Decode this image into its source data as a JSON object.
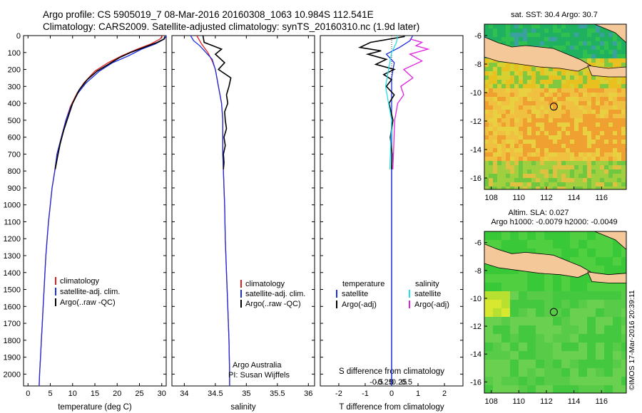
{
  "header": {
    "line1": "Argo profile: CS 5905019_7 08-Mar-2016 20160308_1063 10.984S 112.541E",
    "line2": "Climatology: CARS2009. Satellite-adjusted climatology: synTS_20160310.nc (1.9d later)"
  },
  "credit": "©IMOS 17-Mar-2016 20:39:11",
  "colors": {
    "climatology": "#e02020",
    "satellite": "#1a2de0",
    "argo": "#000000",
    "sal_satellite": "#20e0e8",
    "sal_argo": "#e020e0",
    "land": "#f5c89a"
  },
  "chart_data": [
    {
      "type": "line",
      "id": "temperature",
      "xlabel": "temperature (deg C)",
      "ylabel": "",
      "xlim": [
        -1,
        31
      ],
      "ylim": [
        2070,
        0
      ],
      "xticks": [
        0,
        5,
        10,
        15,
        20,
        25,
        30
      ],
      "yticks": [
        0,
        100,
        200,
        300,
        400,
        500,
        600,
        700,
        800,
        900,
        1000,
        1100,
        1200,
        1300,
        1400,
        1500,
        1600,
        1700,
        1800,
        1900,
        2000
      ],
      "legend": {
        "placement": "bottom-center",
        "entries": [
          "climatology",
          "satellite-adj. clim.",
          "Argo(..raw -QC)"
        ]
      },
      "series": [
        {
          "name": "climatology",
          "color": "#e02020",
          "points": [
            [
              30.2,
              0
            ],
            [
              29.6,
              20
            ],
            [
              27.5,
              50
            ],
            [
              24.5,
              80
            ],
            [
              21,
              120
            ],
            [
              18,
              160
            ],
            [
              15,
              210
            ],
            [
              12.5,
              280
            ],
            [
              11,
              340
            ],
            [
              9.5,
              420
            ],
            [
              8.5,
              500
            ],
            [
              7.5,
              600
            ],
            [
              6.5,
              700
            ],
            [
              6,
              800
            ],
            [
              5.4,
              900
            ],
            [
              5,
              1000
            ],
            [
              4.6,
              1100
            ],
            [
              4.3,
              1200
            ],
            [
              4,
              1300
            ],
            [
              3.8,
              1400
            ],
            [
              3.6,
              1500
            ],
            [
              3.4,
              1600
            ],
            [
              3.2,
              1700
            ],
            [
              3,
              1800
            ],
            [
              2.8,
              1900
            ],
            [
              2.6,
              2000
            ],
            [
              2.5,
              2070
            ]
          ]
        },
        {
          "name": "satellite-adj. clim.",
          "color": "#1a2de0",
          "points": [
            [
              31,
              0
            ],
            [
              30.6,
              20
            ],
            [
              28.5,
              50
            ],
            [
              25.5,
              80
            ],
            [
              22.5,
              120
            ],
            [
              19,
              160
            ],
            [
              16,
              210
            ],
            [
              13,
              280
            ],
            [
              11.2,
              340
            ],
            [
              9.6,
              420
            ],
            [
              8.5,
              500
            ],
            [
              7.5,
              600
            ],
            [
              6.5,
              700
            ],
            [
              6,
              800
            ],
            [
              5.4,
              900
            ],
            [
              5,
              1000
            ],
            [
              4.6,
              1100
            ],
            [
              4.3,
              1200
            ],
            [
              4,
              1300
            ],
            [
              3.8,
              1400
            ],
            [
              3.6,
              1500
            ],
            [
              3.4,
              1600
            ],
            [
              3.2,
              1700
            ],
            [
              3,
              1800
            ],
            [
              2.8,
              1900
            ],
            [
              2.6,
              2000
            ],
            [
              2.5,
              2070
            ]
          ]
        },
        {
          "name": "Argo(..raw -QC)",
          "color": "#000000",
          "points": [
            [
              30.7,
              5
            ],
            [
              30.5,
              20
            ],
            [
              29,
              40
            ],
            [
              26,
              70
            ],
            [
              23,
              100
            ],
            [
              20.5,
              130
            ],
            [
              18,
              170
            ],
            [
              15.5,
              210
            ],
            [
              13.3,
              260
            ],
            [
              11.5,
              320
            ],
            [
              10,
              400
            ],
            [
              9,
              480
            ],
            [
              8,
              560
            ],
            [
              7.2,
              640
            ],
            [
              6.6,
              720
            ],
            [
              6.1,
              790
            ]
          ]
        }
      ]
    },
    {
      "type": "line",
      "id": "salinity",
      "xlabel": "salinity",
      "ylabel": "",
      "xlim": [
        33.8,
        36.1
      ],
      "ylim": [
        2070,
        0
      ],
      "xticks": [
        34,
        34.5,
        35,
        35.5,
        36
      ],
      "legend": {
        "placement": "bottom-right",
        "entries": [
          "climatology",
          "satellite-adj. clim.",
          "Argo(..raw -QC)"
        ]
      },
      "annotation": [
        "Argo Australia",
        "PI: Susan Wijffels"
      ],
      "series": [
        {
          "name": "climatology",
          "color": "#e02020",
          "points": [
            [
              34.2,
              0
            ],
            [
              34.28,
              50
            ],
            [
              34.38,
              100
            ],
            [
              34.45,
              150
            ],
            [
              34.5,
              200
            ],
            [
              34.55,
              300
            ],
            [
              34.6,
              400
            ],
            [
              34.62,
              500
            ],
            [
              34.62,
              600
            ],
            [
              34.62,
              700
            ],
            [
              34.63,
              800
            ],
            [
              34.64,
              900
            ],
            [
              34.65,
              1000
            ],
            [
              34.66,
              1200
            ],
            [
              34.68,
              1400
            ],
            [
              34.7,
              1600
            ],
            [
              34.72,
              1800
            ],
            [
              34.73,
              2000
            ],
            [
              34.73,
              2070
            ]
          ]
        },
        {
          "name": "satellite-adj. clim.",
          "color": "#1a2de0",
          "points": [
            [
              34.1,
              0
            ],
            [
              34.15,
              30
            ],
            [
              34.25,
              60
            ],
            [
              34.35,
              100
            ],
            [
              34.45,
              140
            ],
            [
              34.5,
              200
            ],
            [
              34.55,
              300
            ],
            [
              34.6,
              400
            ],
            [
              34.62,
              500
            ],
            [
              34.62,
              600
            ],
            [
              34.62,
              700
            ],
            [
              34.63,
              800
            ],
            [
              34.64,
              900
            ],
            [
              34.65,
              1000
            ],
            [
              34.66,
              1200
            ],
            [
              34.68,
              1400
            ],
            [
              34.7,
              1600
            ],
            [
              34.72,
              1800
            ],
            [
              34.73,
              2000
            ],
            [
              34.73,
              2070
            ]
          ]
        },
        {
          "name": "Argo(..raw -QC)",
          "color": "#000000",
          "points": [
            [
              34.3,
              0
            ],
            [
              34.32,
              40
            ],
            [
              34.6,
              80
            ],
            [
              34.5,
              110
            ],
            [
              34.65,
              160
            ],
            [
              34.55,
              200
            ],
            [
              34.75,
              250
            ],
            [
              34.72,
              300
            ],
            [
              34.68,
              350
            ],
            [
              34.7,
              400
            ],
            [
              34.65,
              450
            ],
            [
              34.66,
              500
            ],
            [
              34.68,
              550
            ],
            [
              34.64,
              600
            ],
            [
              34.66,
              650
            ],
            [
              34.63,
              700
            ],
            [
              34.64,
              750
            ],
            [
              34.63,
              790
            ]
          ]
        }
      ]
    },
    {
      "type": "line",
      "id": "difference",
      "xlabel": "T difference from climatology",
      "xlabel_top": "S difference from climatology",
      "xlim": [
        -2.7,
        2.7
      ],
      "ylim": [
        2070,
        0
      ],
      "xticks": [
        -2,
        -1,
        0,
        1,
        2
      ],
      "xticks_s": [
        {
          "v": -0.5,
          "t": "-0.5"
        },
        {
          "v": -0.25,
          "t": "-0.25"
        },
        {
          "v": 0,
          "t": "0"
        },
        {
          "v": 0.25,
          "t": "0.25"
        },
        {
          "v": 0.5,
          "t": "0.5"
        }
      ],
      "legend": {
        "placement": "bottom",
        "temperature_title": "temperature",
        "salinity_title": "salinity",
        "entries": [
          "satellite",
          "Argo(-adj)",
          "satellite",
          "Argo(-adj)"
        ]
      },
      "series": [
        {
          "name": "satellite",
          "group": "temperature",
          "color": "#1a2de0",
          "points": [
            [
              0.8,
              0
            ],
            [
              0.7,
              30
            ],
            [
              0.3,
              70
            ],
            [
              -0.2,
              110
            ],
            [
              0.1,
              160
            ],
            [
              0,
              250
            ],
            [
              0,
              400
            ],
            [
              0,
              600
            ],
            [
              0,
              800
            ],
            [
              0,
              1000
            ],
            [
              0,
              1200
            ],
            [
              0,
              1400
            ],
            [
              0,
              1600
            ],
            [
              0,
              1800
            ],
            [
              0,
              2070
            ]
          ]
        },
        {
          "name": "Argo(-adj)",
          "group": "temperature",
          "color": "#000000",
          "points": [
            [
              0.5,
              5
            ],
            [
              -0.8,
              40
            ],
            [
              -1.2,
              70
            ],
            [
              -0.4,
              90
            ],
            [
              -0.9,
              110
            ],
            [
              -0.2,
              140
            ],
            [
              -0.6,
              170
            ],
            [
              0.1,
              200
            ],
            [
              -0.3,
              230
            ],
            [
              0,
              260
            ],
            [
              -0.2,
              300
            ],
            [
              0.1,
              350
            ],
            [
              -0.1,
              400
            ],
            [
              0.05,
              500
            ],
            [
              -0.05,
              600
            ],
            [
              0.02,
              700
            ],
            [
              0,
              790
            ]
          ]
        },
        {
          "name": "satellite",
          "group": "salinity",
          "color": "#20e0e8",
          "points": [
            [
              0.1,
              0
            ],
            [
              0.08,
              40
            ],
            [
              0,
              100
            ],
            [
              -0.05,
              200
            ],
            [
              -0.1,
              300
            ],
            [
              -0.05,
              400
            ],
            [
              0,
              500
            ],
            [
              -0.02,
              700
            ],
            [
              -0.03,
              790
            ]
          ]
        },
        {
          "name": "Argo(-adj)",
          "group": "salinity",
          "color": "#e020e0",
          "points": [
            [
              0.3,
              20
            ],
            [
              0.5,
              40
            ],
            [
              0.4,
              60
            ],
            [
              0.6,
              80
            ],
            [
              0.3,
              110
            ],
            [
              0.5,
              150
            ],
            [
              0.2,
              200
            ],
            [
              0.35,
              250
            ],
            [
              0.15,
              300
            ],
            [
              0.2,
              350
            ],
            [
              0.1,
              400
            ],
            [
              0.05,
              500
            ],
            [
              0.04,
              600
            ],
            [
              0.03,
              700
            ],
            [
              0.02,
              790
            ]
          ]
        }
      ]
    },
    {
      "type": "heatmap",
      "id": "sst_map",
      "title": "sat. SST: 30.4  Argo: 30.7",
      "xlim": [
        107.5,
        117.8
      ],
      "ylim": [
        -16.8,
        -5.2
      ],
      "xticks": [
        108,
        110,
        112,
        114,
        116
      ],
      "yticks": [
        -6,
        -8,
        -10,
        -12,
        -14,
        -16
      ],
      "marker": {
        "lon": 112.541,
        "lat": -10.984
      }
    },
    {
      "type": "heatmap",
      "id": "sla_map",
      "title": "Altim. SLA: 0.027",
      "subtitle": "Argo h1000: -0.0079 h2000: -0.0049",
      "xlim": [
        107.5,
        117.8
      ],
      "ylim": [
        -16.8,
        -5.2
      ],
      "xticks": [
        108,
        110,
        112,
        114,
        116
      ],
      "yticks": [
        -6,
        -8,
        -10,
        -12,
        -14,
        -16
      ],
      "marker": {
        "lon": 112.541,
        "lat": -10.984
      }
    }
  ]
}
